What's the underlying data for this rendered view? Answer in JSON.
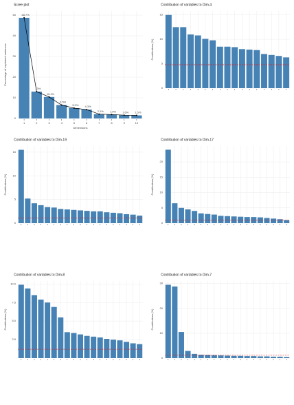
{
  "chart_data": [
    {
      "type": "scree",
      "title": "Scree plot",
      "x_label": "Dimensions",
      "y_label": "Percentage of explained variances",
      "categories": [
        "1",
        "2",
        "3",
        "4",
        "5",
        "6",
        "7",
        "8",
        "9",
        "10"
      ],
      "values": [
        48.7,
        13.0,
        10.4,
        6.5,
        5.0,
        4.3,
        2.1,
        1.9,
        1.6,
        1.5
      ],
      "value_labels": [
        "48.7%",
        "13%",
        "10.4%",
        "6.5%",
        "5.0%",
        "4.3%",
        "2.1%",
        "1.9%",
        "1.6%",
        "1.5%"
      ],
      "color": "#4682b4",
      "line_color": "#000000",
      "ylim": [
        0,
        52
      ],
      "yticks": [
        0,
        10,
        20,
        30,
        40,
        50
      ],
      "grid": true
    },
    {
      "type": "bar",
      "title": "Contribution of variables to Dim-4",
      "y_label": "Contributions (%)",
      "categories": [
        null,
        null,
        null,
        null,
        null,
        null,
        null,
        null,
        null,
        null,
        null,
        null,
        null,
        null,
        null,
        null,
        null
      ],
      "values": [
        15.0,
        12.5,
        12.5,
        11.0,
        10.8,
        10.1,
        9.8,
        8.5,
        8.5,
        8.4,
        8.0,
        7.9,
        7.8,
        7.0,
        6.8,
        6.6,
        6.3
      ],
      "color": "#4682b4",
      "hline": 4.8,
      "hline_color": "#e41a1c",
      "ylim": [
        0,
        15.8
      ],
      "yticks": [
        0,
        5,
        10,
        15
      ],
      "grid": true
    },
    {
      "type": "bar",
      "title": "Contribution of variables to Dim-19",
      "y_label": "Contributions (%)",
      "categories": [
        null,
        null,
        null,
        null,
        null,
        null,
        null,
        null,
        null,
        null,
        null,
        null,
        null,
        null,
        null,
        null,
        null,
        null,
        null
      ],
      "values": [
        15.5,
        5.2,
        4.2,
        3.8,
        3.4,
        3.3,
        3.0,
        2.9,
        2.8,
        2.7,
        2.6,
        2.5,
        2.5,
        2.3,
        2.2,
        2.1,
        1.9,
        1.8,
        1.6
      ],
      "color": "#4682b4",
      "hline": 1.1,
      "hline_color": "#e41a1c",
      "ylim": [
        0,
        16.3
      ],
      "yticks": [
        0,
        5,
        10,
        15
      ],
      "grid": true
    },
    {
      "type": "bar",
      "title": "Contribution of variables to Dim-17",
      "y_label": "Contributions (%)",
      "categories": [
        null,
        null,
        null,
        null,
        null,
        null,
        null,
        null,
        null,
        null,
        null,
        null,
        null,
        null,
        null,
        null,
        null,
        null,
        null
      ],
      "values": [
        24.0,
        6.5,
        5.0,
        4.5,
        4.0,
        3.2,
        3.0,
        2.8,
        2.4,
        2.3,
        2.2,
        2.1,
        2.0,
        2.0,
        1.9,
        1.7,
        1.5,
        1.3,
        1.0
      ],
      "color": "#4682b4",
      "hline": 1.0,
      "hline_color": "#e41a1c",
      "ylim": [
        0,
        25.2
      ],
      "yticks": [
        0,
        5,
        10,
        15,
        20
      ],
      "grid": true
    },
    {
      "type": "bar",
      "title": "Contribution of variables to Dim-8",
      "y_label": "Contributions (%)",
      "categories": [
        null,
        null,
        null,
        null,
        null,
        null,
        null,
        null,
        null,
        null,
        null,
        null,
        null,
        null,
        null,
        null,
        null,
        null,
        null
      ],
      "values": [
        9.9,
        9.4,
        8.5,
        7.9,
        7.5,
        6.9,
        5.5,
        3.5,
        3.4,
        3.2,
        3.0,
        2.9,
        2.8,
        2.6,
        2.5,
        2.4,
        2.2,
        2.0,
        1.9
      ],
      "color": "#4682b4",
      "hline": 1.2,
      "hline_color": "#e41a1c",
      "ylim": [
        0,
        10.4
      ],
      "yticks": [
        {
          "value": 2.5,
          "label": "2.5"
        },
        {
          "value": 5,
          "label": "5.0"
        },
        {
          "value": 7.5,
          "label": "7.5"
        },
        {
          "value": 10,
          "label": "10.0"
        }
      ],
      "grid": true
    },
    {
      "type": "bar",
      "title": "Contribution of variables to Dim-7",
      "y_label": "Contributions (%)",
      "categories": [
        null,
        null,
        null,
        null,
        null,
        null,
        null,
        null,
        null,
        null,
        null,
        null,
        null,
        null,
        null,
        null,
        null,
        null,
        null
      ],
      "values": [
        29.5,
        28.8,
        10.5,
        2.9,
        1.7,
        1.4,
        1.3,
        1.2,
        1.1,
        1.0,
        0.9,
        0.9,
        0.8,
        0.8,
        0.7,
        0.7,
        0.6,
        0.6,
        0.5
      ],
      "color": "#4682b4",
      "hline": 1.3,
      "hline_color": "#e41a1c",
      "ylim": [
        0,
        31
      ],
      "yticks": [
        0,
        10,
        20,
        30
      ],
      "grid": true
    }
  ]
}
